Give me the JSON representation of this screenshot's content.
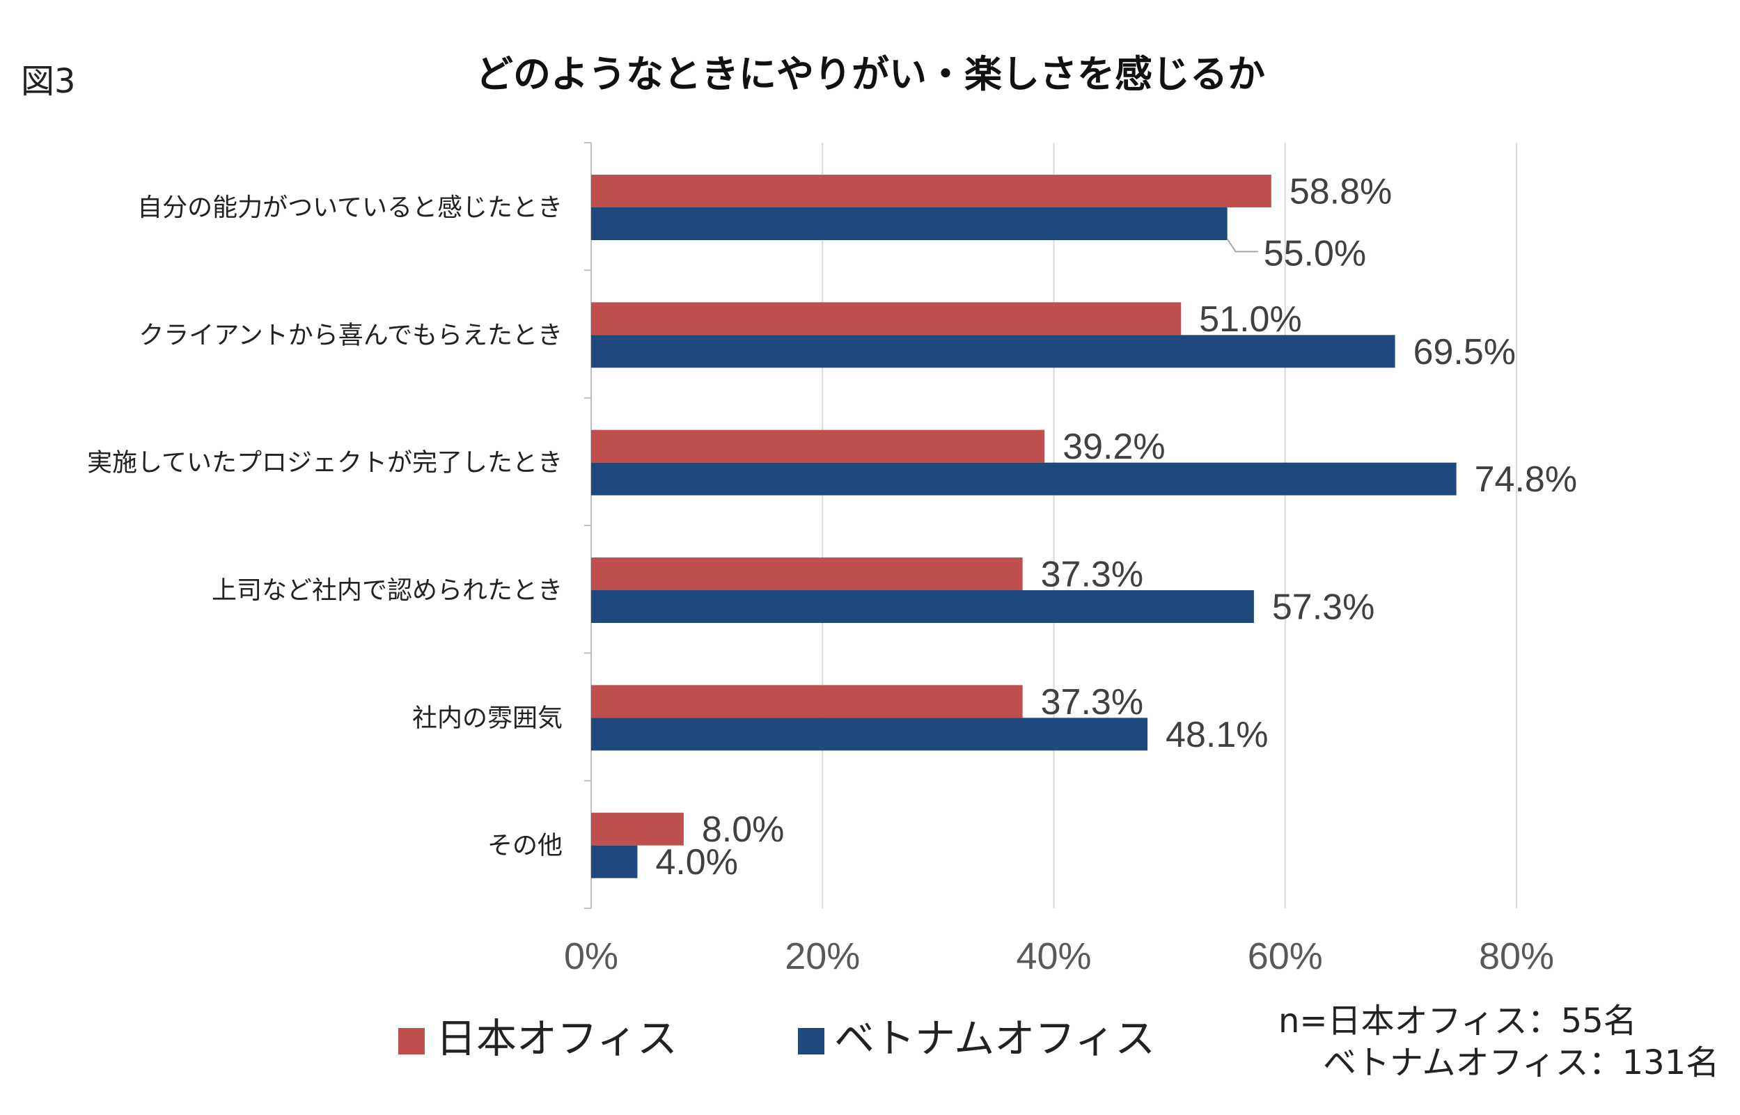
{
  "figure_label": "図3",
  "chart_data": {
    "type": "bar",
    "orientation": "horizontal",
    "title": "どのようなときにやりがい・楽しさを感じるか",
    "categories": [
      "自分の能力がついていると感じたとき",
      "クライアントから喜んでもらえたとき",
      "実施していたプロジェクトが完了したとき",
      "上司など社内で認められたとき",
      "社内の雰囲気",
      "その他"
    ],
    "series": [
      {
        "name": "日本オフィス",
        "color": "#C0504D",
        "values": [
          58.8,
          51.0,
          39.2,
          37.3,
          37.3,
          8.0
        ],
        "labels": [
          "58.8%",
          "51.0%",
          "39.2%",
          "37.3%",
          "37.3%",
          "8.0%"
        ]
      },
      {
        "name": "ベトナムオフィス",
        "color": "#1F497D",
        "values": [
          55.0,
          69.5,
          74.8,
          57.3,
          48.1,
          4.0
        ],
        "labels": [
          "55.0%",
          "69.5%",
          "74.8%",
          "57.3%",
          "48.1%",
          "4.0%"
        ]
      }
    ],
    "xlim": [
      0,
      80
    ],
    "xticks": [
      "0%",
      "20%",
      "40%",
      "60%",
      "80%"
    ],
    "grid": true,
    "legend_position": "bottom"
  },
  "note": {
    "line1": "n=日本オフィス：55名",
    "line2": "ベトナムオフィス：131名"
  },
  "colors": {
    "grid": "#D9D9D9",
    "axis": "#BFBFBF"
  }
}
